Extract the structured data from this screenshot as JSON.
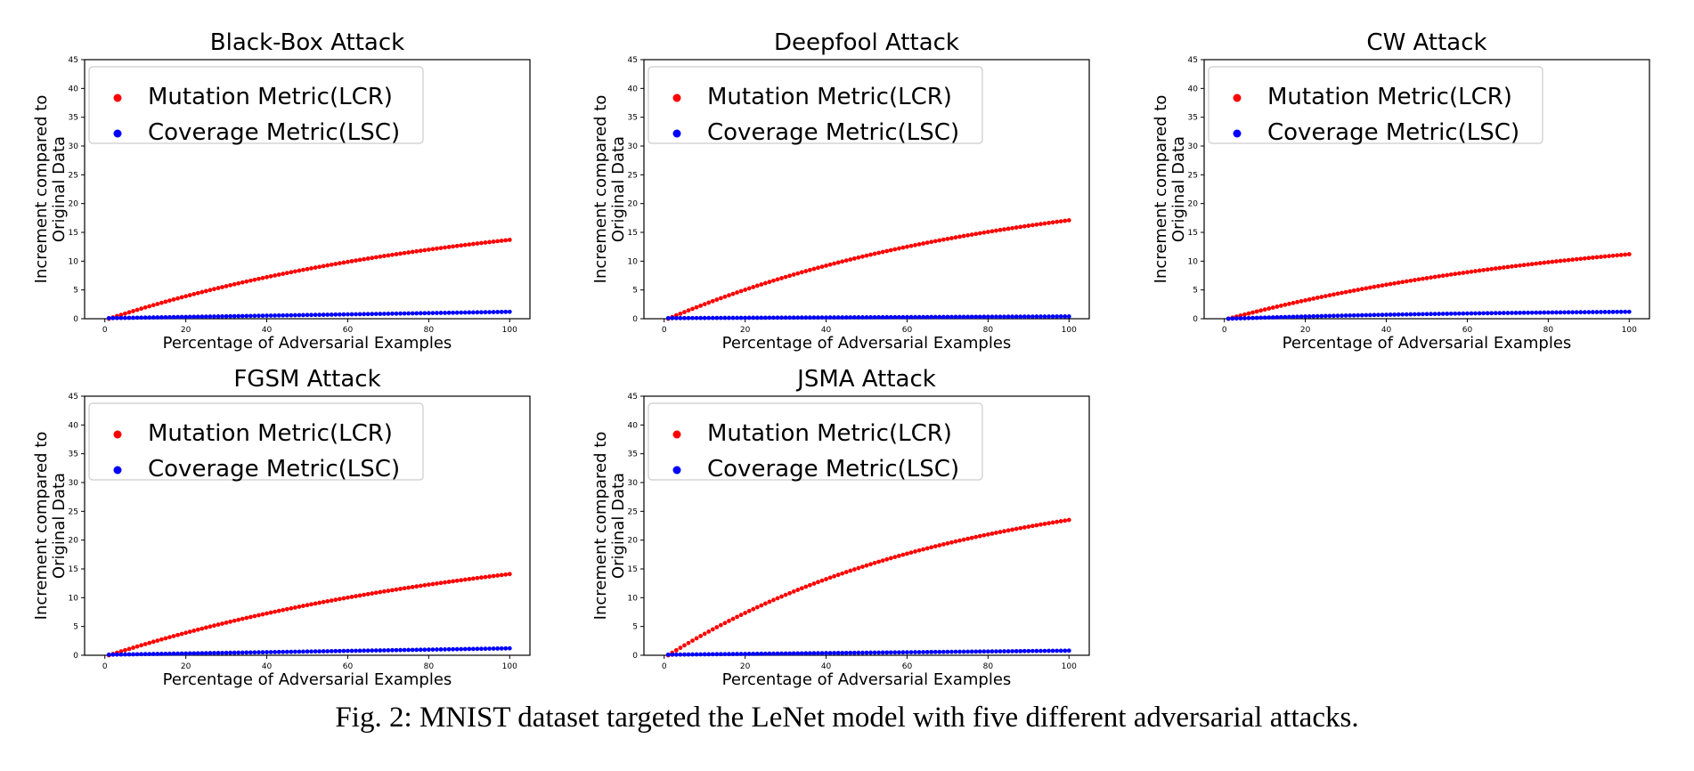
{
  "caption": "Fig. 2: MNIST dataset targeted the LeNet model with five different adversarial attacks.",
  "colors": {
    "mutation": "#ff0000",
    "coverage": "#0000ff",
    "axis": "#000000",
    "legend_border": "#cccccc"
  },
  "chart_data": [
    {
      "type": "scatter",
      "title": "Black-Box Attack",
      "xlabel": "Percentage of Adversarial Examples",
      "ylabel_lines": [
        "Increment compared to",
        "Original Data"
      ],
      "xlim": [
        -5,
        105
      ],
      "ylim": [
        0,
        45
      ],
      "xticks": [
        0,
        20,
        40,
        60,
        80,
        100
      ],
      "yticks": [
        0,
        5,
        10,
        15,
        20,
        25,
        30,
        35,
        40,
        45
      ],
      "legend": "upper-left",
      "series": [
        {
          "name": "Mutation Metric(LCR)",
          "color": "#ff0000",
          "x_range": [
            1,
            100
          ],
          "curve": "saturating",
          "y_end": 13.7,
          "k": 1.1
        },
        {
          "name": "Coverage Metric(LSC)",
          "color": "#0000ff",
          "x_range": [
            1,
            100
          ],
          "curve": "linear",
          "y_start": 0.1,
          "y_end": 1.2
        }
      ]
    },
    {
      "type": "scatter",
      "title": "Deepfool Attack",
      "xlabel": "Percentage of Adversarial Examples",
      "ylabel_lines": [
        "Increment compared to",
        "Original Data"
      ],
      "xlim": [
        -5,
        105
      ],
      "ylim": [
        0,
        45
      ],
      "xticks": [
        0,
        20,
        40,
        60,
        80,
        100
      ],
      "yticks": [
        0,
        5,
        10,
        15,
        20,
        25,
        30,
        35,
        40,
        45
      ],
      "legend": "upper-left",
      "series": [
        {
          "name": "Mutation Metric(LCR)",
          "color": "#ff0000",
          "x_range": [
            1,
            100
          ],
          "curve": "saturating",
          "y_end": 17.1,
          "k": 1.2
        },
        {
          "name": "Coverage Metric(LSC)",
          "color": "#0000ff",
          "x_range": [
            1,
            100
          ],
          "curve": "linear",
          "y_start": 0.1,
          "y_end": 0.4
        }
      ]
    },
    {
      "type": "scatter",
      "title": "CW Attack",
      "xlabel": "Percentage of Adversarial Examples",
      "ylabel_lines": [
        "Increment compared to",
        "Original Data"
      ],
      "xlim": [
        -5,
        105
      ],
      "ylim": [
        0,
        45
      ],
      "xticks": [
        0,
        20,
        40,
        60,
        80,
        100
      ],
      "yticks": [
        0,
        5,
        10,
        15,
        20,
        25,
        30,
        35,
        40,
        45
      ],
      "legend": "upper-left",
      "series": [
        {
          "name": "Mutation Metric(LCR)",
          "color": "#ff0000",
          "x_range": [
            1,
            100
          ],
          "curve": "saturating",
          "y_end": 11.2,
          "k": 1.1
        },
        {
          "name": "Coverage Metric(LSC)",
          "color": "#0000ff",
          "x_range": [
            1,
            100
          ],
          "curve": "saturating",
          "y_end": 1.2,
          "k": 1.5
        }
      ]
    },
    {
      "type": "scatter",
      "title": "FGSM Attack",
      "xlabel": "Percentage of Adversarial Examples",
      "ylabel_lines": [
        "Increment compared to",
        "Original Data"
      ],
      "xlim": [
        -5,
        105
      ],
      "ylim": [
        0,
        45
      ],
      "xticks": [
        0,
        20,
        40,
        60,
        80,
        100
      ],
      "yticks": [
        0,
        5,
        10,
        15,
        20,
        25,
        30,
        35,
        40,
        45
      ],
      "legend": "upper-left",
      "series": [
        {
          "name": "Mutation Metric(LCR)",
          "color": "#ff0000",
          "x_range": [
            1,
            100
          ],
          "curve": "saturating",
          "y_end": 14.1,
          "k": 1.0
        },
        {
          "name": "Coverage Metric(LSC)",
          "color": "#0000ff",
          "x_range": [
            1,
            100
          ],
          "curve": "linear",
          "y_start": 0.1,
          "y_end": 1.2
        }
      ]
    },
    {
      "type": "scatter",
      "title": "JSMA Attack",
      "xlabel": "Percentage of Adversarial Examples",
      "ylabel_lines": [
        "Increment compared to",
        "Original Data"
      ],
      "xlim": [
        -5,
        105
      ],
      "ylim": [
        0,
        45
      ],
      "xticks": [
        0,
        20,
        40,
        60,
        80,
        100
      ],
      "yticks": [
        0,
        5,
        10,
        15,
        20,
        25,
        30,
        35,
        40,
        45
      ],
      "legend": "upper-left",
      "series": [
        {
          "name": "Mutation Metric(LCR)",
          "color": "#ff0000",
          "x_range": [
            1,
            100
          ],
          "curve": "saturating",
          "y_end": 23.5,
          "k": 1.4
        },
        {
          "name": "Coverage Metric(LSC)",
          "color": "#0000ff",
          "x_range": [
            1,
            100
          ],
          "curve": "linear",
          "y_start": 0.1,
          "y_end": 0.8
        }
      ]
    }
  ]
}
